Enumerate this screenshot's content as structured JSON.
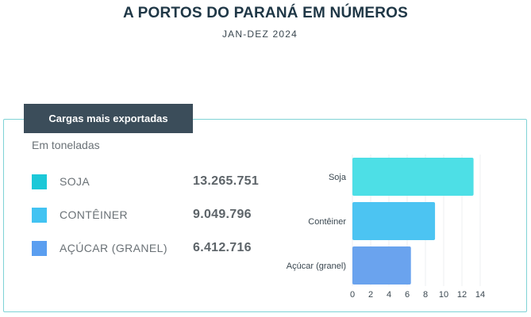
{
  "header": {
    "title": "A PORTOS DO PARANÁ EM NÚMEROS",
    "subtitle": "JAN-DEZ 2024"
  },
  "panel": {
    "tab_label": "Cargas mais exportadas",
    "unit_note": "Em toneladas",
    "legend": [
      {
        "label": "SOJA",
        "value": "13.265.751",
        "color": "#1cc8d8"
      },
      {
        "label": "CONTÊINER",
        "value": "9.049.796",
        "color": "#42c3f2"
      },
      {
        "label": "AÇÚCAR (GRANEL)",
        "value": "6.412.716",
        "color": "#5a9ef0"
      }
    ]
  },
  "chart_data": {
    "type": "bar",
    "orientation": "horizontal",
    "categories": [
      "Soja",
      "Contêiner",
      "Açúcar (granel)"
    ],
    "values": [
      13.27,
      9.05,
      6.41
    ],
    "colors": [
      "#4ddfe6",
      "#4cc4f2",
      "#6aa3ee"
    ],
    "xlim": [
      0,
      14
    ],
    "xticks": [
      "0",
      "2",
      "4",
      "6",
      "8",
      "10",
      "12",
      "14"
    ],
    "grid": true
  }
}
